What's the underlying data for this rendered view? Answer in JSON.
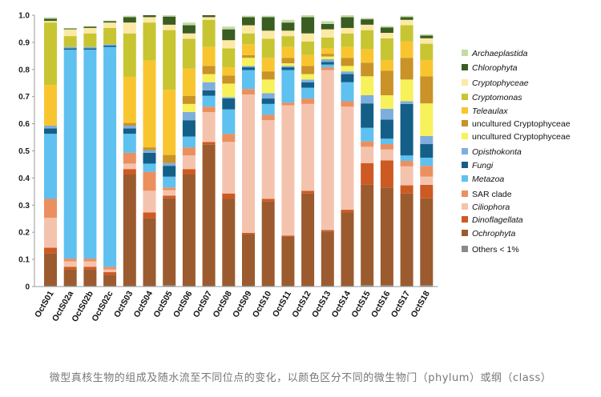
{
  "caption": "微型真核生物的组成及随水流至不同位点的变化，以颜色区分不同的微生物门（phylum）或纲（class）",
  "chart_data": {
    "type": "bar",
    "stacked": true,
    "title": "",
    "xlabel": "",
    "ylabel": "",
    "ylim": [
      0,
      1.0
    ],
    "yticks": [
      "0",
      "0.1",
      "0.2",
      "0.3",
      "0.4",
      "0.5",
      "0.6",
      "0.7",
      "0.8",
      "0.9",
      "1.0"
    ],
    "categories": [
      "OctS01",
      "OctS02a",
      "OctS02b",
      "OctS02c",
      "OctS03",
      "OctS04",
      "OctS05",
      "OctS06",
      "OctS07",
      "OctS08",
      "OctS09",
      "OctS10",
      "OctS11",
      "OctS12",
      "OctS13",
      "OctS14",
      "OctS15",
      "OctS16",
      "OctS17",
      "OctS18"
    ],
    "series": [
      {
        "name": "Others < 1%",
        "color": "#8a8a8a",
        "values": [
          0.003,
          0.003,
          0.003,
          0.003,
          0.003,
          0.003,
          0.005,
          0.003,
          0.003,
          0.003,
          0.003,
          0.003,
          0.003,
          0.003,
          0.003,
          0.003,
          0.005,
          0.005,
          0.003,
          0.005
        ]
      },
      {
        "name": "Ochrophyta",
        "color": "#9c5b2e",
        "values": [
          0.12,
          0.06,
          0.06,
          0.04,
          0.41,
          0.25,
          0.32,
          0.41,
          0.52,
          0.32,
          0.19,
          0.31,
          0.18,
          0.34,
          0.2,
          0.27,
          0.37,
          0.36,
          0.34,
          0.32
        ]
      },
      {
        "name": "Dinoflagellata",
        "color": "#cd5a22",
        "values": [
          0.02,
          0.01,
          0.01,
          0.01,
          0.02,
          0.02,
          0.01,
          0.02,
          0.01,
          0.02,
          0.005,
          0.01,
          0.005,
          0.01,
          0.005,
          0.01,
          0.08,
          0.1,
          0.03,
          0.05
        ]
      },
      {
        "name": "Ciliophora",
        "color": "#f4c3ae",
        "values": [
          0.11,
          0.02,
          0.02,
          0.01,
          0.02,
          0.08,
          0.02,
          0.05,
          0.11,
          0.19,
          0.51,
          0.29,
          0.48,
          0.32,
          0.59,
          0.38,
          0.06,
          0.04,
          0.07,
          0.03
        ]
      },
      {
        "name": "SAR clade",
        "color": "#ec8f5f",
        "values": [
          0.07,
          0.01,
          0.01,
          0.01,
          0.04,
          0.07,
          0.01,
          0.03,
          0.02,
          0.03,
          0.02,
          0.02,
          0.01,
          0.02,
          0.01,
          0.02,
          0.02,
          0.02,
          0.02,
          0.04
        ]
      },
      {
        "name": "Metazoa",
        "color": "#5ec1f0",
        "values": [
          0.24,
          0.77,
          0.77,
          0.81,
          0.07,
          0.03,
          0.04,
          0.04,
          0.04,
          0.09,
          0.07,
          0.04,
          0.12,
          0.04,
          0.01,
          0.07,
          0.05,
          0.02,
          0.02,
          0.03
        ]
      },
      {
        "name": "Fungi",
        "color": "#145f88",
        "values": [
          0.02,
          0.005,
          0.005,
          0.005,
          0.02,
          0.04,
          0.04,
          0.06,
          0.02,
          0.04,
          0.01,
          0.02,
          0.01,
          0.02,
          0.01,
          0.03,
          0.09,
          0.07,
          0.19,
          0.05
        ]
      },
      {
        "name": "Opisthokonta",
        "color": "#7eaedc",
        "values": [
          0.01,
          0.005,
          0.005,
          0.005,
          0.01,
          0.01,
          0.01,
          0.03,
          0.03,
          0.005,
          0.005,
          0.02,
          0.005,
          0.01,
          0.01,
          0.01,
          0.03,
          0.04,
          0.01,
          0.03
        ]
      },
      {
        "name": "uncultured Cryptophyceae",
        "color": "#f7f15a",
        "values": [
          0.0,
          0.0,
          0.0,
          0.0,
          0.0,
          0.0,
          0.0,
          0.03,
          0.03,
          0.05,
          0.03,
          0.05,
          0.01,
          0.02,
          0.01,
          0.02,
          0.07,
          0.05,
          0.08,
          0.12
        ]
      },
      {
        "name": "uncultured Cryptophyceae",
        "color": "#c99328",
        "values": [
          0.0,
          0.0,
          0.0,
          0.0,
          0.01,
          0.01,
          0.03,
          0.03,
          0.03,
          0.03,
          0.01,
          0.03,
          0.02,
          0.03,
          0.01,
          0.03,
          0.05,
          0.09,
          0.08,
          0.1
        ]
      },
      {
        "name": "Teleaulax",
        "color": "#f9c52f",
        "values": [
          0.15,
          0.0,
          0.0,
          0.0,
          0.17,
          0.32,
          0.24,
          0.1,
          0.07,
          0.03,
          0.04,
          0.05,
          0.04,
          0.04,
          0.02,
          0.04,
          0.05,
          0.04,
          0.06,
          0.06
        ]
      },
      {
        "name": "Cryptomonas",
        "color": "#c8c532",
        "values": [
          0.23,
          0.04,
          0.05,
          0.06,
          0.16,
          0.14,
          0.22,
          0.11,
          0.1,
          0.07,
          0.04,
          0.07,
          0.04,
          0.05,
          0.04,
          0.05,
          0.07,
          0.08,
          0.06,
          0.06
        ]
      },
      {
        "name": "Cryptophyceae",
        "color": "#fbe9a4",
        "values": [
          0.006,
          0.025,
          0.02,
          0.02,
          0.04,
          0.02,
          0.02,
          0.02,
          0.01,
          0.03,
          0.03,
          0.03,
          0.02,
          0.03,
          0.03,
          0.02,
          0.02,
          0.02,
          0.02,
          0.02
        ]
      },
      {
        "name": "Chlorophyta",
        "color": "#3a5d22",
        "values": [
          0.008,
          0.003,
          0.005,
          0.005,
          0.02,
          0.03,
          0.03,
          0.03,
          0.03,
          0.04,
          0.03,
          0.05,
          0.03,
          0.06,
          0.02,
          0.04,
          0.02,
          0.02,
          0.01,
          0.01
        ]
      },
      {
        "name": "Archaeplastida",
        "color": "#c4dba6",
        "values": [
          0.005,
          0.002,
          0.002,
          0.002,
          0.005,
          0.005,
          0.005,
          0.01,
          0.01,
          0.01,
          0.005,
          0.005,
          0.01,
          0.01,
          0.01,
          0.01,
          0.005,
          0.005,
          0.005,
          0.005
        ]
      }
    ],
    "legend": {
      "position": "right",
      "entries": [
        {
          "name": "Archaeplastida",
          "color": "#c4dba6",
          "italic": true
        },
        {
          "name": "Chlorophyta",
          "color": "#3a5d22",
          "italic": true
        },
        {
          "name": "Cryptophyceae",
          "color": "#fbe9a4",
          "italic": true
        },
        {
          "name": "Cryptomonas",
          "color": "#c8c532",
          "italic": true
        },
        {
          "name": "Teleaulax",
          "color": "#f9c52f",
          "italic": true
        },
        {
          "name": "uncultured Cryptophyceae",
          "color": "#c99328",
          "italic": false
        },
        {
          "name": "uncultured Cryptophyceae",
          "color": "#f7f15a",
          "italic": false
        },
        {
          "name": "Opisthokonta",
          "color": "#7eaedc",
          "italic": true
        },
        {
          "name": "Fungi",
          "color": "#145f88",
          "italic": true
        },
        {
          "name": "Metazoa",
          "color": "#5ec1f0",
          "italic": true
        },
        {
          "name": "SAR clade",
          "color": "#ec8f5f",
          "italic": false
        },
        {
          "name": "Ciliophora",
          "color": "#f4c3ae",
          "italic": true
        },
        {
          "name": "Dinoflagellata",
          "color": "#cd5a22",
          "italic": true
        },
        {
          "name": "Ochrophyta",
          "color": "#9c5b2e",
          "italic": true
        },
        {
          "name": "Others < 1%",
          "color": "#8a8a8a",
          "italic": false
        }
      ]
    }
  }
}
